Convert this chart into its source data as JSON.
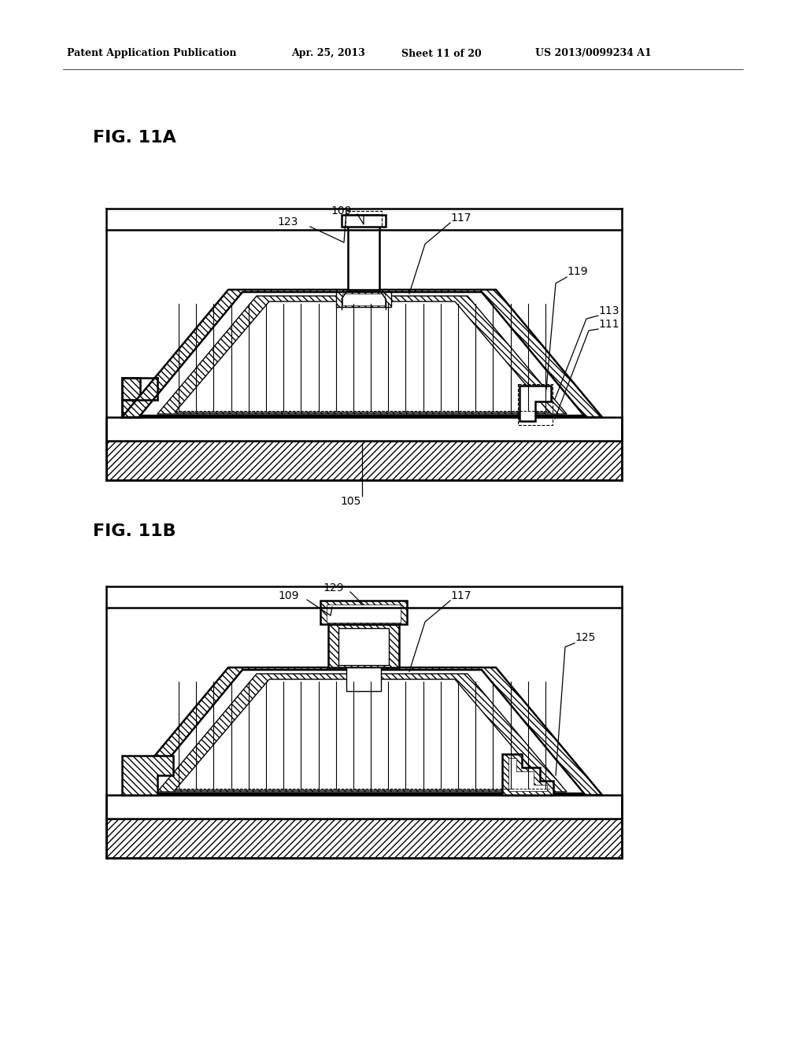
{
  "bg": "#ffffff",
  "lc": "#000000",
  "header_left": "Patent Application Publication",
  "header_date": "Apr. 25, 2013",
  "header_sheet": "Sheet 11 of 20",
  "header_pat": "US 2013/0099234 A1",
  "fig_a": "FIG. 11A",
  "fig_b": "FIG. 11B",
  "lw": 1.8,
  "lw_t": 1.0,
  "lw_d": 0.8,
  "fs_hdr": 9,
  "fs_fig": 16,
  "fs_lbl": 10
}
